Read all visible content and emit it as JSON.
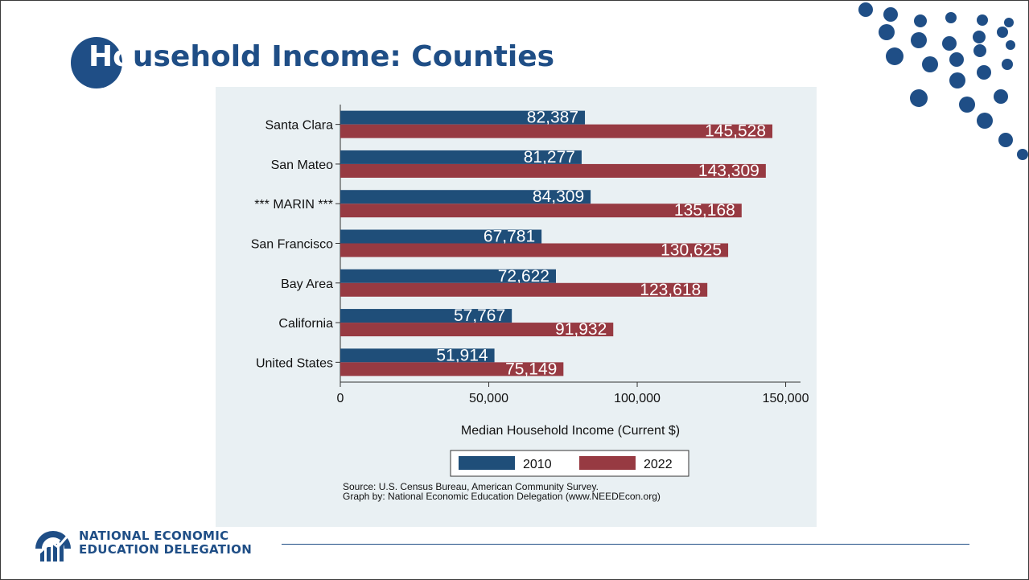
{
  "slide": {
    "title_first": "Ho",
    "title_rest": "usehold Income: Counties"
  },
  "chart_data": {
    "type": "bar",
    "orientation": "horizontal",
    "categories": [
      "Santa Clara",
      "San Mateo",
      "*** MARIN ***",
      "San Francisco",
      "Bay Area",
      "California",
      "United States"
    ],
    "series": [
      {
        "name": "2010",
        "color": "#1f4e79",
        "values": [
          82387,
          81277,
          84309,
          67781,
          72622,
          57767,
          51914
        ]
      },
      {
        "name": "2022",
        "color": "#973a42",
        "values": [
          145528,
          143309,
          135168,
          130625,
          123618,
          91932,
          75149
        ]
      }
    ],
    "value_labels": {
      "2010": [
        "82,387",
        "81,277",
        "84,309",
        "67,781",
        "72,622",
        "57,767",
        "51,914"
      ],
      "2022": [
        "145,528",
        "143,309",
        "135,168",
        "130,625",
        "123,618",
        "91,932",
        "75,149"
      ]
    },
    "xlabel": "Median Household Income (Current $)",
    "xlim": [
      0,
      155000
    ],
    "xticks": [
      0,
      50000,
      100000,
      150000
    ],
    "xtick_labels": [
      "0",
      "50,000",
      "100,000",
      "150,000"
    ],
    "legend_position": "bottom",
    "grid": false
  },
  "source": {
    "line1": "Source: U.S. Census Bureau, American Community Survey.",
    "line2": "Graph by: National Economic Education Delegation (www.NEEDEcon.org)"
  },
  "footer": {
    "org_line1": "NATIONAL ECONOMIC",
    "org_line2": "EDUCATION DELEGATION"
  },
  "colors": {
    "brand_blue": "#1f4e86",
    "panel_bg": "#e9f0f3"
  }
}
